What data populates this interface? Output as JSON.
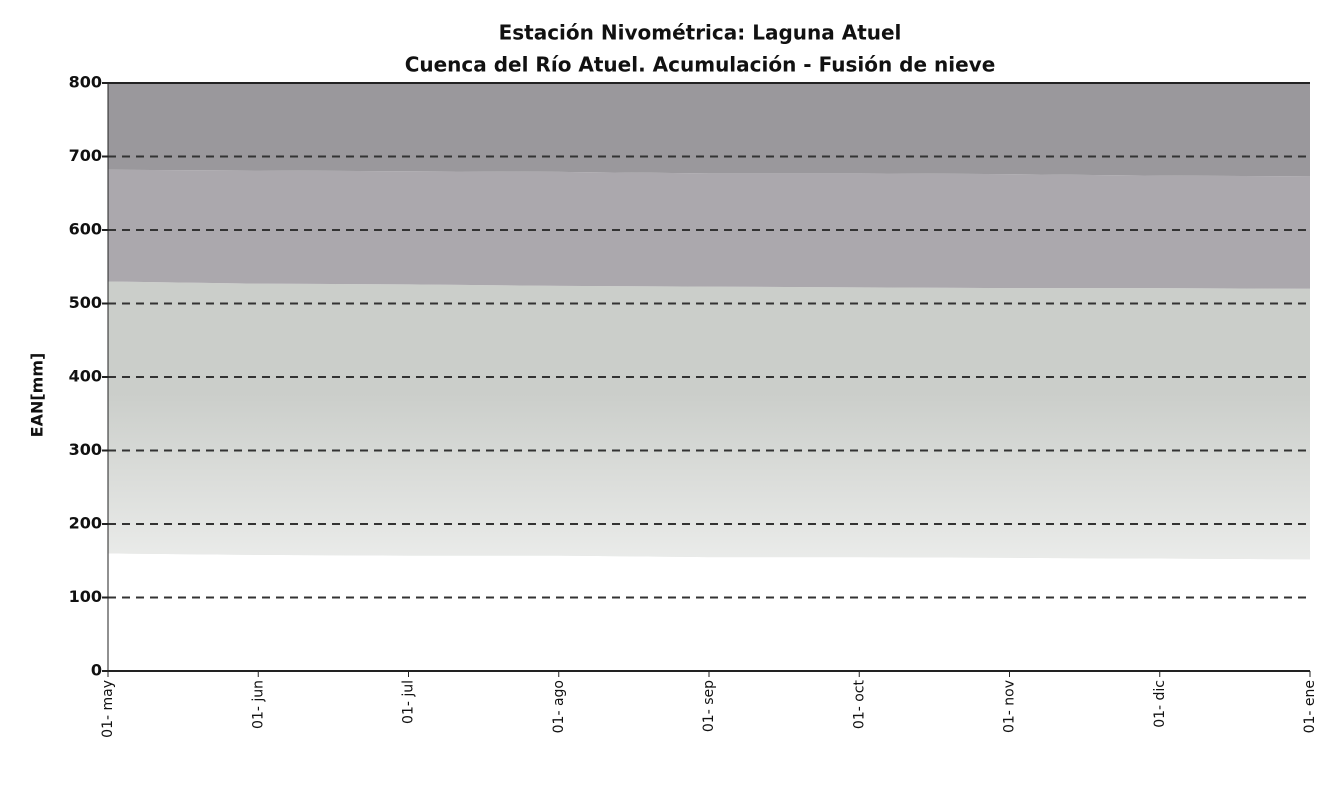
{
  "chart_data": {
    "type": "band",
    "title": "Estación Nivométrica: Laguna Atuel",
    "subtitle": "Cuenca del Río Atuel. Acumulación - Fusión de nieve",
    "y_label": "EAN[mm]",
    "categories": [
      "01- may",
      "01- jun",
      "01- jul",
      "01- ago",
      "01- sep",
      "01- oct",
      "01- nov",
      "01- dic",
      "01- ene"
    ],
    "series": [
      {
        "color": "#cbceca",
        "low": [
          160,
          158,
          157,
          157,
          155,
          155,
          154,
          153,
          152
        ],
        "high": [
          530,
          527,
          526,
          524,
          523,
          522,
          521,
          521,
          520
        ]
      },
      {
        "color": "#aba8ad",
        "low": [
          530,
          527,
          526,
          524,
          523,
          522,
          521,
          521,
          520
        ],
        "high": [
          682,
          681,
          680,
          679,
          677,
          677,
          676,
          674,
          673
        ]
      },
      {
        "color": "#9a989c",
        "low": [
          682,
          681,
          680,
          679,
          677,
          677,
          676,
          674,
          673
        ],
        "high": [
          800,
          800,
          800,
          800,
          800,
          800,
          800,
          800,
          800
        ]
      }
    ],
    "ylim": [
      0,
      800
    ],
    "yticks": [
      0,
      100,
      200,
      300,
      400,
      500,
      600,
      700,
      800
    ],
    "grid": true
  }
}
